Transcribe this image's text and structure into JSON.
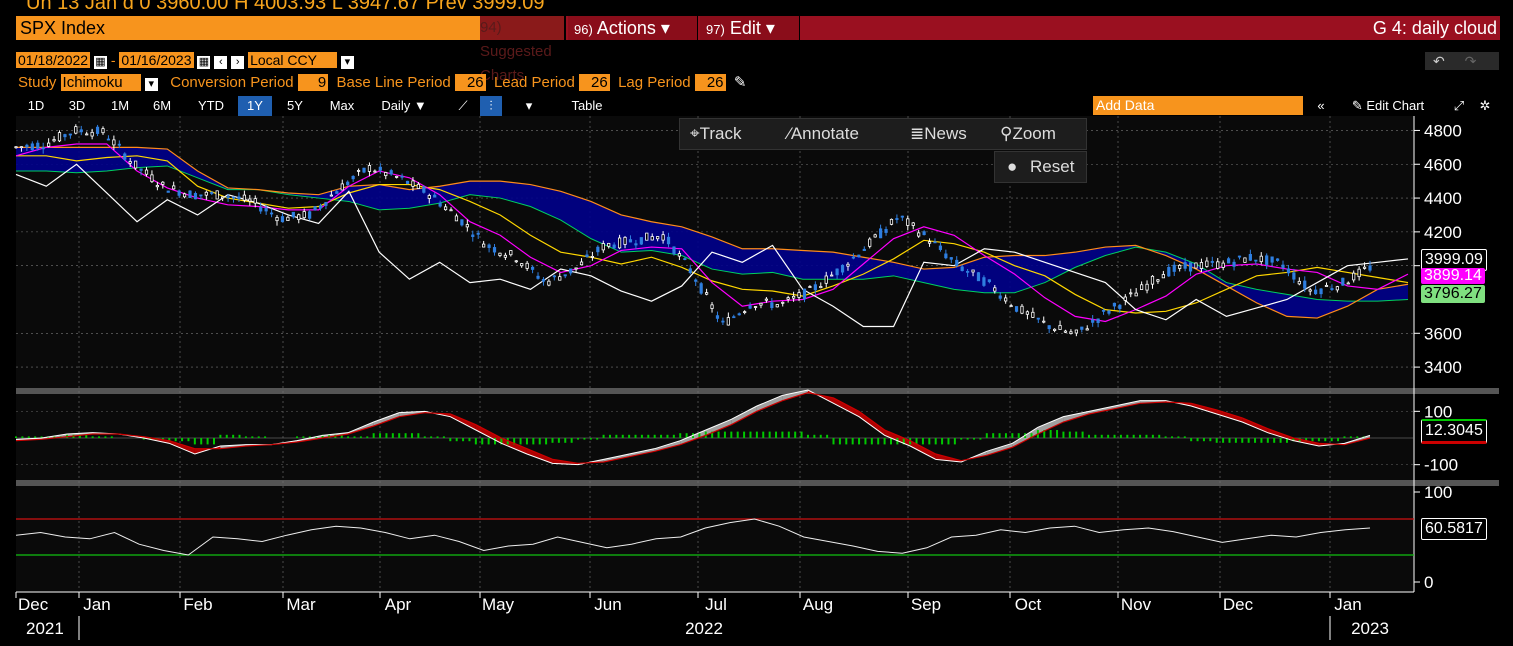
{
  "header": {
    "topline": "Un 13 Jan d 0 3960.00 H 4003.93 L 3947.67 Prev 3999.09",
    "ticker": "SPX Index",
    "suggested": "94) Suggested Charts",
    "actions_num": "96)",
    "actions_label": "Actions ▾",
    "edit_num": "97)",
    "edit_label": "Edit ▾",
    "chart_name": "G 4: daily cloud"
  },
  "controls": {
    "start_date": "01/18/2022",
    "end_date": "01/16/2023",
    "currency": "Local CCY",
    "study_label": "Study",
    "study_value": "Ichimoku",
    "conv_label": "Conversion Period",
    "conv_value": "9",
    "base_label": "Base Line Period",
    "base_value": "26",
    "lead_label": "Lead Period",
    "lead_value": "26",
    "lag_label": "Lag Period",
    "lag_value": "26",
    "periods": [
      "1D",
      "3D",
      "1M",
      "6M",
      "YTD",
      "1Y",
      "5Y",
      "Max"
    ],
    "selected_period": "1Y",
    "frequency": "Daily ▼",
    "table_label": "Table",
    "add_data_placeholder": "Add Data",
    "edit_chart_label": "Edit Chart"
  },
  "toolbar": {
    "track": "Track",
    "annotate": "Annotate",
    "news": "News",
    "zoom": "Zoom",
    "reset": "Reset"
  },
  "colors": {
    "orange": "#f7941d",
    "cloud": "#00008b",
    "conversion": "#ff00ff",
    "base": "#ffd700",
    "lagging": "#ffffff",
    "lead_a": "#00d060",
    "lead_b": "#ff8c1a",
    "macd_up": "#bbbbbb",
    "macd_down": "#cc0000",
    "hist": "#00c800"
  },
  "chart_data": [
    {
      "type": "candlestick",
      "title": "SPX Index",
      "ylim": [
        3300,
        4850
      ],
      "yticks": [
        "4800",
        "4600",
        "4400",
        "4200",
        "4000",
        "3600",
        "3400"
      ],
      "last_labels": [
        "3999.09",
        "3899.14",
        "3796.27"
      ],
      "x_months": [
        "Dec",
        "Jan",
        "Feb",
        "Mar",
        "Apr",
        "May",
        "Jun",
        "Jul",
        "Aug",
        "Sep",
        "Oct",
        "Nov",
        "Dec",
        "Jan"
      ],
      "x_years": [
        "2021",
        "2022",
        "2023"
      ],
      "x_dates": [
        "2021-12-15",
        "2022-01-15",
        "2022-02-15",
        "2022-03-15",
        "2022-04-15",
        "2022-05-15",
        "2022-06-15",
        "2022-07-15",
        "2022-08-15",
        "2022-09-15",
        "2022-10-15",
        "2022-11-15",
        "2022-12-15",
        "2023-01-13"
      ],
      "price": [
        4700,
        4720,
        4800,
        4790,
        4600,
        4470,
        4420,
        4420,
        4380,
        4280,
        4300,
        4460,
        4580,
        4520,
        4430,
        4290,
        4120,
        4050,
        3900,
        3980,
        4120,
        4150,
        4180,
        3950,
        3650,
        3780,
        3770,
        3850,
        3980,
        4130,
        4290,
        4160,
        4000,
        3900,
        3750,
        3650,
        3590,
        3720,
        3830,
        3960,
        4000,
        4010,
        4050,
        4010,
        3850,
        3890,
        3990
      ],
      "conversion": [
        4650,
        4700,
        4720,
        4720,
        4560,
        4460,
        4400,
        4360,
        4350,
        4330,
        4330,
        4470,
        4560,
        4520,
        4420,
        4260,
        4180,
        4050,
        3960,
        4000,
        4090,
        4110,
        4100,
        3900,
        3760,
        3790,
        3800,
        3860,
        4010,
        4160,
        4230,
        4180,
        4060,
        3950,
        3810,
        3700,
        3670,
        3740,
        3820,
        3950,
        4000,
        4010,
        3980,
        3960,
        3880,
        3860,
        3950
      ],
      "base": [
        4650,
        4650,
        4620,
        4640,
        4650,
        4620,
        4470,
        4400,
        4370,
        4340,
        4350,
        4430,
        4480,
        4480,
        4450,
        4380,
        4300,
        4180,
        4080,
        4050,
        4010,
        4050,
        3990,
        3910,
        3860,
        3850,
        3820,
        3880,
        3950,
        4040,
        4150,
        4130,
        4080,
        4000,
        3940,
        3830,
        3740,
        3720,
        3730,
        3780,
        3860,
        3940,
        3960,
        3990,
        3960,
        3930,
        3900
      ],
      "lead_a": [
        4560,
        4560,
        4550,
        4560,
        4580,
        4590,
        4520,
        4450,
        4450,
        4420,
        4400,
        4380,
        4330,
        4340,
        4370,
        4420,
        4400,
        4350,
        4270,
        4160,
        4080,
        4090,
        4060,
        3980,
        3950,
        3960,
        3920,
        3920,
        3920,
        3940,
        3900,
        3860,
        3840,
        3840,
        3900,
        3990,
        4060,
        4110,
        4080,
        4010,
        3900,
        3860,
        3830,
        3800,
        3790,
        3790,
        3800
      ],
      "lead_b": [
        4700,
        4700,
        4700,
        4700,
        4700,
        4690,
        4560,
        4460,
        4450,
        4430,
        4420,
        4470,
        4480,
        4450,
        4470,
        4500,
        4500,
        4480,
        4440,
        4380,
        4300,
        4260,
        4230,
        4170,
        4100,
        4100,
        4090,
        4080,
        4050,
        4020,
        3980,
        3990,
        4050,
        4060,
        4060,
        4080,
        4110,
        4120,
        4060,
        3980,
        3880,
        3780,
        3700,
        3690,
        3760,
        3860,
        3890
      ],
      "lagging": [
        4540,
        4470,
        4600,
        4430,
        4260,
        4390,
        4300,
        4420,
        4370,
        4300,
        4250,
        4440,
        4080,
        3920,
        4020,
        3900,
        3920,
        3860,
        3980,
        3940,
        3850,
        3790,
        3880,
        4080,
        4020,
        4120,
        3860,
        3760,
        3640,
        3640,
        4020,
        4000,
        4100,
        4080,
        4020,
        3960,
        3900,
        3740,
        3680,
        3800,
        3700,
        3750,
        3800,
        3900,
        4000,
        4020,
        4040
      ]
    },
    {
      "type": "line",
      "ylim": [
        -150,
        150
      ],
      "yticks": [
        "100",
        "-100"
      ],
      "last_label": "12.3045",
      "macd": [
        -5,
        0,
        15,
        20,
        15,
        0,
        -20,
        -60,
        -30,
        -25,
        -25,
        -10,
        10,
        20,
        60,
        95,
        100,
        80,
        30,
        -20,
        -60,
        -95,
        -100,
        -80,
        -60,
        -40,
        -10,
        30,
        70,
        120,
        160,
        180,
        130,
        80,
        10,
        -30,
        -80,
        -90,
        -50,
        -20,
        40,
        80,
        100,
        120,
        140,
        140,
        120,
        90,
        60,
        20,
        -10,
        -30,
        -20,
        10
      ],
      "signal": [
        -10,
        -5,
        5,
        15,
        15,
        5,
        -10,
        -40,
        -40,
        -30,
        -25,
        -15,
        0,
        15,
        45,
        80,
        95,
        90,
        50,
        0,
        -40,
        -80,
        -95,
        -90,
        -70,
        -50,
        -25,
        10,
        50,
        100,
        140,
        170,
        150,
        100,
        30,
        -10,
        -60,
        -85,
        -65,
        -35,
        15,
        60,
        90,
        110,
        130,
        135,
        130,
        105,
        75,
        35,
        0,
        -20,
        -25,
        0
      ]
    },
    {
      "type": "line",
      "ylim": [
        0,
        100
      ],
      "yticks": [
        "100",
        "0"
      ],
      "levels": [
        70,
        30
      ],
      "last_label": "60.5817",
      "rsi": [
        52,
        55,
        50,
        48,
        55,
        42,
        35,
        30,
        50,
        48,
        45,
        52,
        58,
        62,
        60,
        55,
        48,
        52,
        45,
        35,
        40,
        42,
        50,
        44,
        38,
        42,
        48,
        50,
        60,
        66,
        70,
        62,
        50,
        45,
        40,
        34,
        32,
        38,
        50,
        52,
        58,
        55,
        60,
        62,
        55,
        58,
        60,
        56,
        50,
        44,
        48,
        52,
        50,
        55,
        58,
        60
      ]
    }
  ]
}
